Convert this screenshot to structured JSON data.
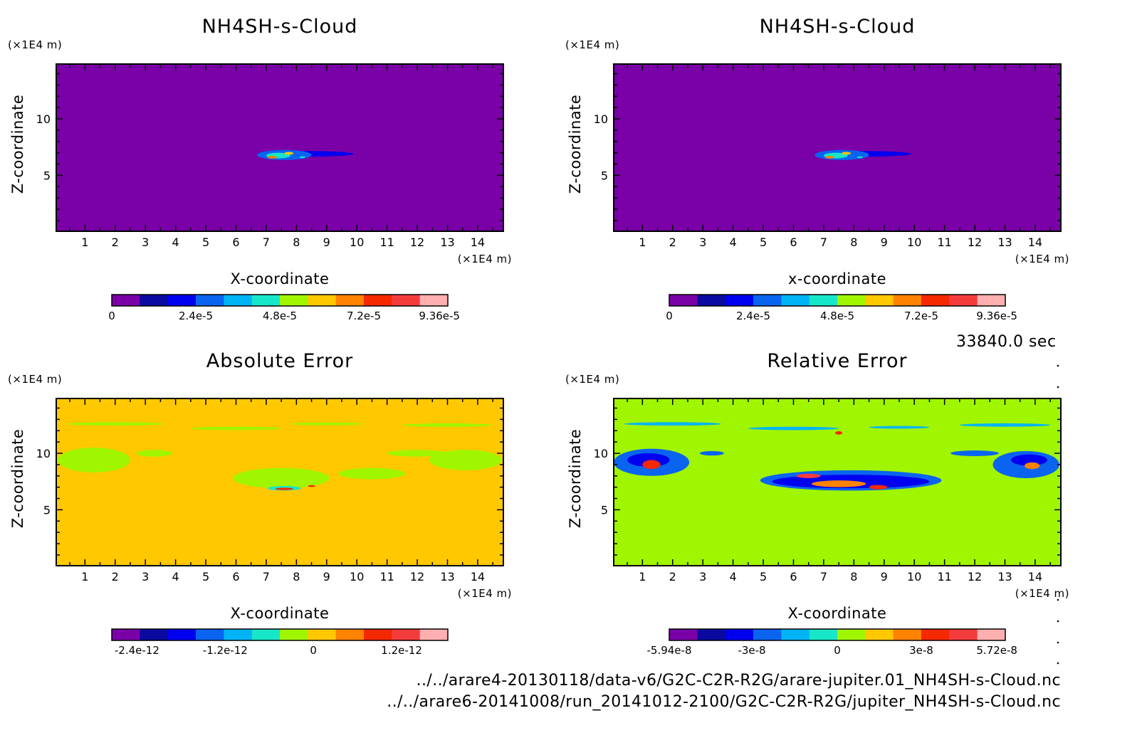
{
  "time_label": "33840.0 sec",
  "footer": {
    "line1": "../../arare4-20130118/data-v6/G2C-C2R-R2G/arare-jupiter.01_NH4SH-s-Cloud.nc",
    "line2": "../../arare6-20141008/run_20141012-2100/G2C-C2R-R2G/jupiter_NH4SH-s-Cloud.nc"
  },
  "colorbar_colors": [
    "#7a00a8",
    "#0a0aa0",
    "#0000f0",
    "#0a64f0",
    "#00b4f5",
    "#18e6c8",
    "#a0f500",
    "#ffc800",
    "#ff8200",
    "#f52800",
    "#f53c3c",
    "#ffafaf"
  ],
  "chart_data": [
    {
      "type": "heatmap",
      "title": "NH4SH-s-Cloud",
      "xlabel": "X-coordinate",
      "ylabel": "Z-coordinate",
      "x_unit": "(×1E4 m)",
      "y_unit": "(×1E4 m)",
      "xlim": [
        0.05,
        14.85
      ],
      "ylim": [
        0.05,
        14.85
      ],
      "x_ticks": [
        1,
        2,
        3,
        4,
        5,
        6,
        7,
        8,
        9,
        10,
        11,
        12,
        13,
        14
      ],
      "y_ticks": [
        5,
        10
      ],
      "background_color": "#7a00a8",
      "colorbar_labels": [
        "0",
        "2.4e-5",
        "4.8e-5",
        "7.2e-5",
        "9.36e-5"
      ],
      "colorbar_label_positions": [
        0,
        3,
        6,
        9,
        11.7
      ],
      "features": [
        {
          "x": 8.3,
          "z": 6.9,
          "rx": 1.6,
          "rz": 0.25,
          "color": "#0000f0"
        },
        {
          "x": 7.6,
          "z": 6.8,
          "rx": 0.9,
          "rz": 0.45,
          "color": "#0a64f0"
        },
        {
          "x": 7.4,
          "z": 6.75,
          "rx": 0.4,
          "rz": 0.25,
          "color": "#18e6c8"
        },
        {
          "x": 7.2,
          "z": 6.6,
          "rx": 0.15,
          "rz": 0.12,
          "color": "#ff8200"
        },
        {
          "x": 7.75,
          "z": 6.95,
          "rx": 0.15,
          "rz": 0.12,
          "color": "#ffc800"
        },
        {
          "x": 8.2,
          "z": 6.6,
          "rx": 0.1,
          "rz": 0.08,
          "color": "#18e6c8"
        }
      ]
    },
    {
      "type": "heatmap",
      "title": "NH4SH-s-Cloud",
      "xlabel": "x-coordinate",
      "ylabel": "Z-coordinate",
      "x_unit": "(×1E4 m)",
      "y_unit": "(×1E4 m)",
      "xlim": [
        0.05,
        14.85
      ],
      "ylim": [
        0.05,
        14.85
      ],
      "x_ticks": [
        1,
        2,
        3,
        4,
        5,
        6,
        7,
        8,
        9,
        10,
        11,
        12,
        13,
        14
      ],
      "y_ticks": [
        5,
        10
      ],
      "background_color": "#7a00a8",
      "colorbar_labels": [
        "0",
        "2.4e-5",
        "4.8e-5",
        "7.2e-5",
        "9.36e-5"
      ],
      "colorbar_label_positions": [
        0,
        3,
        6,
        9,
        11.7
      ],
      "features": [
        {
          "x": 8.3,
          "z": 6.9,
          "rx": 1.6,
          "rz": 0.25,
          "color": "#0000f0"
        },
        {
          "x": 7.6,
          "z": 6.8,
          "rx": 0.9,
          "rz": 0.45,
          "color": "#0a64f0"
        },
        {
          "x": 7.4,
          "z": 6.75,
          "rx": 0.4,
          "rz": 0.25,
          "color": "#18e6c8"
        },
        {
          "x": 7.2,
          "z": 6.6,
          "rx": 0.15,
          "rz": 0.12,
          "color": "#ff8200"
        },
        {
          "x": 7.75,
          "z": 6.95,
          "rx": 0.15,
          "rz": 0.12,
          "color": "#ffc800"
        },
        {
          "x": 8.2,
          "z": 6.6,
          "rx": 0.1,
          "rz": 0.08,
          "color": "#18e6c8"
        }
      ]
    },
    {
      "type": "heatmap",
      "title": "Absolute Error",
      "xlabel": "X-coordinate",
      "ylabel": "Z-coordinate",
      "x_unit": "(×1E4 m)",
      "y_unit": "(×1E4 m)",
      "xlim": [
        0.05,
        14.85
      ],
      "ylim": [
        0.05,
        14.85
      ],
      "x_ticks": [
        1,
        2,
        3,
        4,
        5,
        6,
        7,
        8,
        9,
        10,
        11,
        12,
        13,
        14
      ],
      "y_ticks": [
        5,
        10
      ],
      "background_color": "#ffc800",
      "colorbar_labels": [
        "-2.4e-12",
        "-1.2e-12",
        "0",
        "1.2e-12"
      ],
      "colorbar_label_positions": [
        0.9,
        4.05,
        7.2,
        10.35
      ],
      "features": [
        {
          "x": 2.0,
          "z": 12.6,
          "rx": 1.6,
          "rz": 0.15,
          "color": "#a0f500"
        },
        {
          "x": 6.0,
          "z": 12.2,
          "rx": 1.5,
          "rz": 0.15,
          "color": "#a0f500"
        },
        {
          "x": 9.0,
          "z": 12.6,
          "rx": 1.2,
          "rz": 0.12,
          "color": "#a0f500"
        },
        {
          "x": 13.0,
          "z": 12.5,
          "rx": 1.5,
          "rz": 0.15,
          "color": "#a0f500"
        },
        {
          "x": 1.3,
          "z": 9.4,
          "rx": 1.2,
          "rz": 1.1,
          "color": "#a0f500"
        },
        {
          "x": 3.3,
          "z": 10.0,
          "rx": 0.6,
          "rz": 0.3,
          "color": "#a0f500"
        },
        {
          "x": 7.5,
          "z": 7.8,
          "rx": 1.6,
          "rz": 0.9,
          "color": "#a0f500"
        },
        {
          "x": 10.5,
          "z": 8.2,
          "rx": 1.1,
          "rz": 0.5,
          "color": "#a0f500"
        },
        {
          "x": 12.0,
          "z": 10.0,
          "rx": 1.0,
          "rz": 0.3,
          "color": "#a0f500"
        },
        {
          "x": 13.6,
          "z": 9.4,
          "rx": 1.2,
          "rz": 0.9,
          "color": "#a0f500"
        },
        {
          "x": 7.6,
          "z": 6.9,
          "rx": 0.55,
          "rz": 0.2,
          "color": "#18e6c8"
        },
        {
          "x": 7.6,
          "z": 6.85,
          "rx": 0.3,
          "rz": 0.1,
          "color": "#f52800"
        },
        {
          "x": 8.5,
          "z": 7.1,
          "rx": 0.12,
          "rz": 0.08,
          "color": "#f52800"
        }
      ]
    },
    {
      "type": "heatmap",
      "title": "Relative Error",
      "xlabel": "X-coordinate",
      "ylabel": "Z-coordinate",
      "x_unit": "(×1E4 m)",
      "y_unit": "(×1E4 m)",
      "xlim": [
        0.05,
        14.85
      ],
      "ylim": [
        0.05,
        14.85
      ],
      "x_ticks": [
        1,
        2,
        3,
        4,
        5,
        6,
        7,
        8,
        9,
        10,
        11,
        12,
        13,
        14
      ],
      "y_ticks": [
        5,
        10
      ],
      "background_color": "#a0f500",
      "colorbar_labels": [
        "-5.94e-8",
        "-3e-8",
        "0",
        "3e-8",
        "5.72e-8"
      ],
      "colorbar_label_positions": [
        0,
        2.95,
        6,
        9,
        11.7
      ],
      "features": [
        {
          "x": 2.0,
          "z": 12.6,
          "rx": 1.6,
          "rz": 0.15,
          "color": "#00b4f5"
        },
        {
          "x": 6.0,
          "z": 12.2,
          "rx": 1.5,
          "rz": 0.15,
          "color": "#00b4f5"
        },
        {
          "x": 9.5,
          "z": 12.3,
          "rx": 1.0,
          "rz": 0.12,
          "color": "#00b4f5"
        },
        {
          "x": 13.0,
          "z": 12.5,
          "rx": 1.5,
          "rz": 0.15,
          "color": "#00b4f5"
        },
        {
          "x": 1.3,
          "z": 9.2,
          "rx": 1.25,
          "rz": 1.2,
          "color": "#0a64f0"
        },
        {
          "x": 1.2,
          "z": 9.4,
          "rx": 0.7,
          "rz": 0.6,
          "color": "#0000f0"
        },
        {
          "x": 1.3,
          "z": 9.0,
          "rx": 0.3,
          "rz": 0.4,
          "color": "#f52800"
        },
        {
          "x": 3.3,
          "z": 10.0,
          "rx": 0.4,
          "rz": 0.2,
          "color": "#0a64f0"
        },
        {
          "x": 7.9,
          "z": 7.6,
          "rx": 3.0,
          "rz": 0.9,
          "color": "#0a64f0"
        },
        {
          "x": 7.9,
          "z": 7.5,
          "rx": 2.6,
          "rz": 0.6,
          "color": "#0000f0"
        },
        {
          "x": 7.5,
          "z": 7.3,
          "rx": 0.9,
          "rz": 0.3,
          "color": "#ff8200"
        },
        {
          "x": 8.8,
          "z": 7.0,
          "rx": 0.3,
          "rz": 0.2,
          "color": "#f52800"
        },
        {
          "x": 6.5,
          "z": 8.0,
          "rx": 0.4,
          "rz": 0.2,
          "color": "#f53c3c"
        },
        {
          "x": 12.0,
          "z": 10.0,
          "rx": 0.8,
          "rz": 0.25,
          "color": "#0a64f0"
        },
        {
          "x": 13.7,
          "z": 9.0,
          "rx": 1.1,
          "rz": 1.2,
          "color": "#0a64f0"
        },
        {
          "x": 13.8,
          "z": 9.4,
          "rx": 0.6,
          "rz": 0.5,
          "color": "#0000f0"
        },
        {
          "x": 13.9,
          "z": 8.9,
          "rx": 0.25,
          "rz": 0.3,
          "color": "#ff8200"
        },
        {
          "x": 7.5,
          "z": 11.8,
          "rx": 0.12,
          "rz": 0.15,
          "color": "#f52800"
        }
      ]
    }
  ]
}
